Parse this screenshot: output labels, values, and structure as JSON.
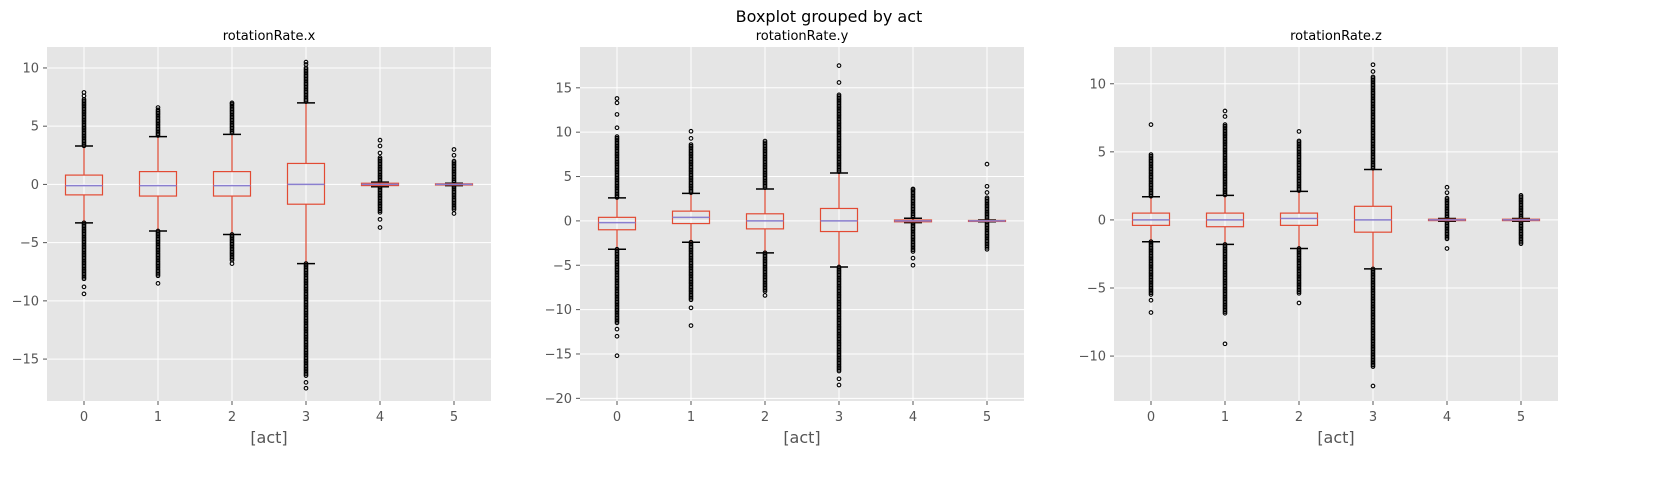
{
  "suptitle": "Boxplot grouped by act",
  "colors": {
    "panel_bg": "#e5e5e5",
    "box": "#e24a33",
    "median": "#8a7fcf",
    "cap": "#000000",
    "flier": "#000000",
    "tick_text": "#555555"
  },
  "chart_data": [
    {
      "type": "box",
      "title": "rotationRate.x",
      "xlabel": "[act]",
      "ylabel": "",
      "ylim": [
        -18.6,
        11.8
      ],
      "yticks": [
        10,
        5,
        0,
        -5,
        -10,
        -15
      ],
      "categories": [
        "0",
        "1",
        "2",
        "3",
        "4",
        "5"
      ],
      "grid": true,
      "boxes": [
        {
          "cat": "0",
          "whislo": -3.3,
          "q1": -0.9,
          "med": -0.1,
          "q3": 0.8,
          "whishi": 3.3,
          "flier_lo": [
            -3.3,
            -8.2
          ],
          "flier_hi": [
            3.3,
            7.3
          ],
          "out_lo": [
            -8.8,
            -9.4
          ],
          "out_hi": [
            7.6,
            7.9
          ]
        },
        {
          "cat": "1",
          "whislo": -4.0,
          "q1": -1.0,
          "med": -0.1,
          "q3": 1.1,
          "whishi": 4.1,
          "flier_lo": [
            -4.0,
            -7.9
          ],
          "flier_hi": [
            4.1,
            6.4
          ],
          "out_lo": [
            -8.5
          ],
          "out_hi": [
            6.6
          ]
        },
        {
          "cat": "2",
          "whislo": -4.3,
          "q1": -1.0,
          "med": -0.1,
          "q3": 1.1,
          "whishi": 4.3,
          "flier_lo": [
            -4.3,
            -6.5
          ],
          "flier_hi": [
            4.3,
            6.9
          ],
          "out_lo": [
            -6.8
          ],
          "out_hi": [
            7.0
          ]
        },
        {
          "cat": "3",
          "whislo": -6.8,
          "q1": -1.7,
          "med": 0.0,
          "q3": 1.8,
          "whishi": 7.0,
          "flier_lo": [
            -6.8,
            -16.5
          ],
          "flier_hi": [
            7.0,
            10.0
          ],
          "out_lo": [
            -17.0,
            -17.5
          ],
          "out_hi": [
            10.3,
            10.5
          ]
        },
        {
          "cat": "4",
          "whislo": -0.2,
          "q1": -0.1,
          "med": 0.0,
          "q3": 0.1,
          "whishi": 0.2,
          "flier_lo": [
            -0.2,
            -2.5
          ],
          "flier_hi": [
            0.2,
            2.3
          ],
          "out_lo": [
            -3.0,
            -3.7
          ],
          "out_hi": [
            2.7,
            3.3,
            3.8
          ]
        },
        {
          "cat": "5",
          "whislo": -0.1,
          "q1": -0.05,
          "med": 0.0,
          "q3": 0.05,
          "whishi": 0.1,
          "flier_lo": [
            -0.1,
            -2.2
          ],
          "flier_hi": [
            0.1,
            2.0
          ],
          "out_lo": [
            -2.5
          ],
          "out_hi": [
            2.5,
            3.0
          ]
        }
      ]
    },
    {
      "type": "box",
      "title": "rotationRate.y",
      "xlabel": "[act]",
      "ylabel": "",
      "ylim": [
        -20.3,
        19.6
      ],
      "yticks": [
        15,
        10,
        5,
        0,
        -5,
        -10,
        -15,
        -20
      ],
      "categories": [
        "0",
        "1",
        "2",
        "3",
        "4",
        "5"
      ],
      "grid": true,
      "boxes": [
        {
          "cat": "0",
          "whislo": -3.2,
          "q1": -1.0,
          "med": -0.2,
          "q3": 0.4,
          "whishi": 2.6,
          "flier_lo": [
            -3.2,
            -11.5
          ],
          "flier_hi": [
            2.6,
            9.5
          ],
          "out_lo": [
            -12.2,
            -13.0,
            -15.2
          ],
          "out_hi": [
            10.5,
            12.0,
            13.3,
            13.8
          ]
        },
        {
          "cat": "1",
          "whislo": -2.4,
          "q1": -0.3,
          "med": 0.4,
          "q3": 1.1,
          "whishi": 3.1,
          "flier_lo": [
            -2.4,
            -9.0
          ],
          "flier_hi": [
            3.1,
            8.6
          ],
          "out_lo": [
            -9.8,
            -11.8
          ],
          "out_hi": [
            9.3,
            10.1
          ]
        },
        {
          "cat": "2",
          "whislo": -3.6,
          "q1": -0.9,
          "med": 0.0,
          "q3": 0.8,
          "whishi": 3.6,
          "flier_lo": [
            -3.6,
            -8.0
          ],
          "flier_hi": [
            3.6,
            8.8
          ],
          "out_lo": [
            -8.4
          ],
          "out_hi": [
            9.0
          ]
        },
        {
          "cat": "3",
          "whislo": -5.2,
          "q1": -1.2,
          "med": 0.0,
          "q3": 1.4,
          "whishi": 5.4,
          "flier_lo": [
            -5.2,
            -17.0
          ],
          "flier_hi": [
            5.4,
            14.2
          ],
          "out_lo": [
            -17.8,
            -18.5
          ],
          "out_hi": [
            15.6,
            17.5
          ]
        },
        {
          "cat": "4",
          "whislo": -0.2,
          "q1": -0.1,
          "med": 0.0,
          "q3": 0.1,
          "whishi": 0.3,
          "flier_lo": [
            -0.2,
            -3.5
          ],
          "flier_hi": [
            0.3,
            3.5
          ],
          "out_lo": [
            -4.2,
            -5.0
          ],
          "out_hi": [
            3.6
          ]
        },
        {
          "cat": "5",
          "whislo": -0.1,
          "q1": -0.05,
          "med": 0.0,
          "q3": 0.05,
          "whishi": 0.1,
          "flier_lo": [
            -0.1,
            -3.0
          ],
          "flier_hi": [
            0.1,
            2.6
          ],
          "out_lo": [
            -3.2
          ],
          "out_hi": [
            3.2,
            3.9,
            6.4
          ]
        }
      ]
    },
    {
      "type": "box",
      "title": "rotationRate.z",
      "xlabel": "[act]",
      "ylabel": "",
      "ylim": [
        -13.3,
        12.7
      ],
      "yticks": [
        10,
        5,
        0,
        -5,
        -10
      ],
      "categories": [
        "0",
        "1",
        "2",
        "3",
        "4",
        "5"
      ],
      "grid": true,
      "boxes": [
        {
          "cat": "0",
          "whislo": -1.6,
          "q1": -0.4,
          "med": 0.0,
          "q3": 0.5,
          "whishi": 1.7,
          "flier_lo": [
            -1.6,
            -5.5
          ],
          "flier_hi": [
            1.7,
            4.8
          ],
          "out_lo": [
            -5.9,
            -6.8
          ],
          "out_hi": [
            7.0
          ]
        },
        {
          "cat": "1",
          "whislo": -1.8,
          "q1": -0.5,
          "med": 0.0,
          "q3": 0.5,
          "whishi": 1.8,
          "flier_lo": [
            -1.8,
            -6.9
          ],
          "flier_hi": [
            1.8,
            7.0
          ],
          "out_lo": [
            -9.1
          ],
          "out_hi": [
            7.6,
            8.0
          ]
        },
        {
          "cat": "2",
          "whislo": -2.1,
          "q1": -0.4,
          "med": 0.1,
          "q3": 0.5,
          "whishi": 2.1,
          "flier_lo": [
            -2.1,
            -5.5
          ],
          "flier_hi": [
            2.1,
            5.8
          ],
          "out_lo": [
            -6.1
          ],
          "out_hi": [
            6.5
          ]
        },
        {
          "cat": "3",
          "whislo": -3.6,
          "q1": -0.9,
          "med": 0.0,
          "q3": 1.0,
          "whishi": 3.7,
          "flier_lo": [
            -3.6,
            -10.8
          ],
          "flier_hi": [
            3.7,
            10.5
          ],
          "out_lo": [
            -12.2
          ],
          "out_hi": [
            10.9,
            11.4
          ]
        },
        {
          "cat": "4",
          "whislo": -0.1,
          "q1": -0.05,
          "med": 0.0,
          "q3": 0.05,
          "whishi": 0.1,
          "flier_lo": [
            -0.1,
            -1.5
          ],
          "flier_hi": [
            0.1,
            1.6
          ],
          "out_lo": [
            -2.1
          ],
          "out_hi": [
            2.0,
            2.4
          ]
        },
        {
          "cat": "5",
          "whislo": -0.1,
          "q1": -0.05,
          "med": 0.0,
          "q3": 0.05,
          "whishi": 0.1,
          "flier_lo": [
            -0.1,
            -1.8
          ],
          "flier_hi": [
            0.1,
            1.8
          ],
          "out_lo": [],
          "out_hi": []
        }
      ]
    }
  ]
}
